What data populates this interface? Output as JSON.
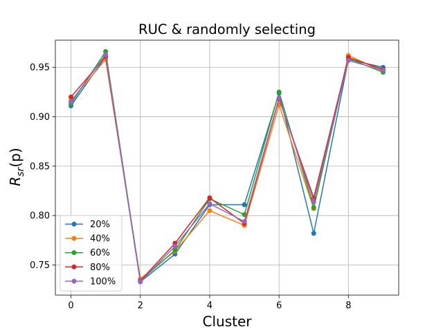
{
  "chart_data": {
    "type": "line",
    "title": "RUC & randomly selecting",
    "xlabel": "Cluster",
    "ylabel": "R_sr(p)",
    "ylabel_main": "R",
    "ylabel_sub": "sr",
    "ylabel_rest": "(p)",
    "x": [
      0,
      1,
      2,
      3,
      4,
      5,
      6,
      7,
      8,
      9
    ],
    "xticks": [
      0,
      2,
      4,
      6,
      8
    ],
    "xtick_labels": [
      "0",
      "2",
      "4",
      "6",
      "8"
    ],
    "yticks": [
      0.75,
      0.8,
      0.85,
      0.9,
      0.95
    ],
    "ytick_labels": [
      "0.75",
      "0.80",
      "0.85",
      "0.90",
      "0.95"
    ],
    "xlim": [
      -0.45,
      9.45
    ],
    "ylim": [
      0.7195,
      0.9775
    ],
    "grid": true,
    "legend_position": "lower-left",
    "series": [
      {
        "name": "20%",
        "color": "#1f77b4",
        "values": [
          0.911,
          0.961,
          0.733,
          0.761,
          0.811,
          0.811,
          0.924,
          0.782,
          0.958,
          0.95
        ]
      },
      {
        "name": "40%",
        "color": "#ff7f0e",
        "values": [
          0.916,
          0.958,
          0.736,
          0.764,
          0.805,
          0.79,
          0.912,
          0.807,
          0.962,
          0.946
        ]
      },
      {
        "name": "60%",
        "color": "#2ca02c",
        "values": [
          0.913,
          0.966,
          0.734,
          0.765,
          0.817,
          0.801,
          0.925,
          0.808,
          0.959,
          0.945
        ]
      },
      {
        "name": "80%",
        "color": "#d62728",
        "values": [
          0.92,
          0.961,
          0.734,
          0.772,
          0.818,
          0.792,
          0.918,
          0.818,
          0.96,
          0.948
        ]
      },
      {
        "name": "100%",
        "color": "#9467bd",
        "values": [
          0.915,
          0.963,
          0.733,
          0.769,
          0.812,
          0.794,
          0.919,
          0.814,
          0.957,
          0.947
        ]
      }
    ]
  }
}
